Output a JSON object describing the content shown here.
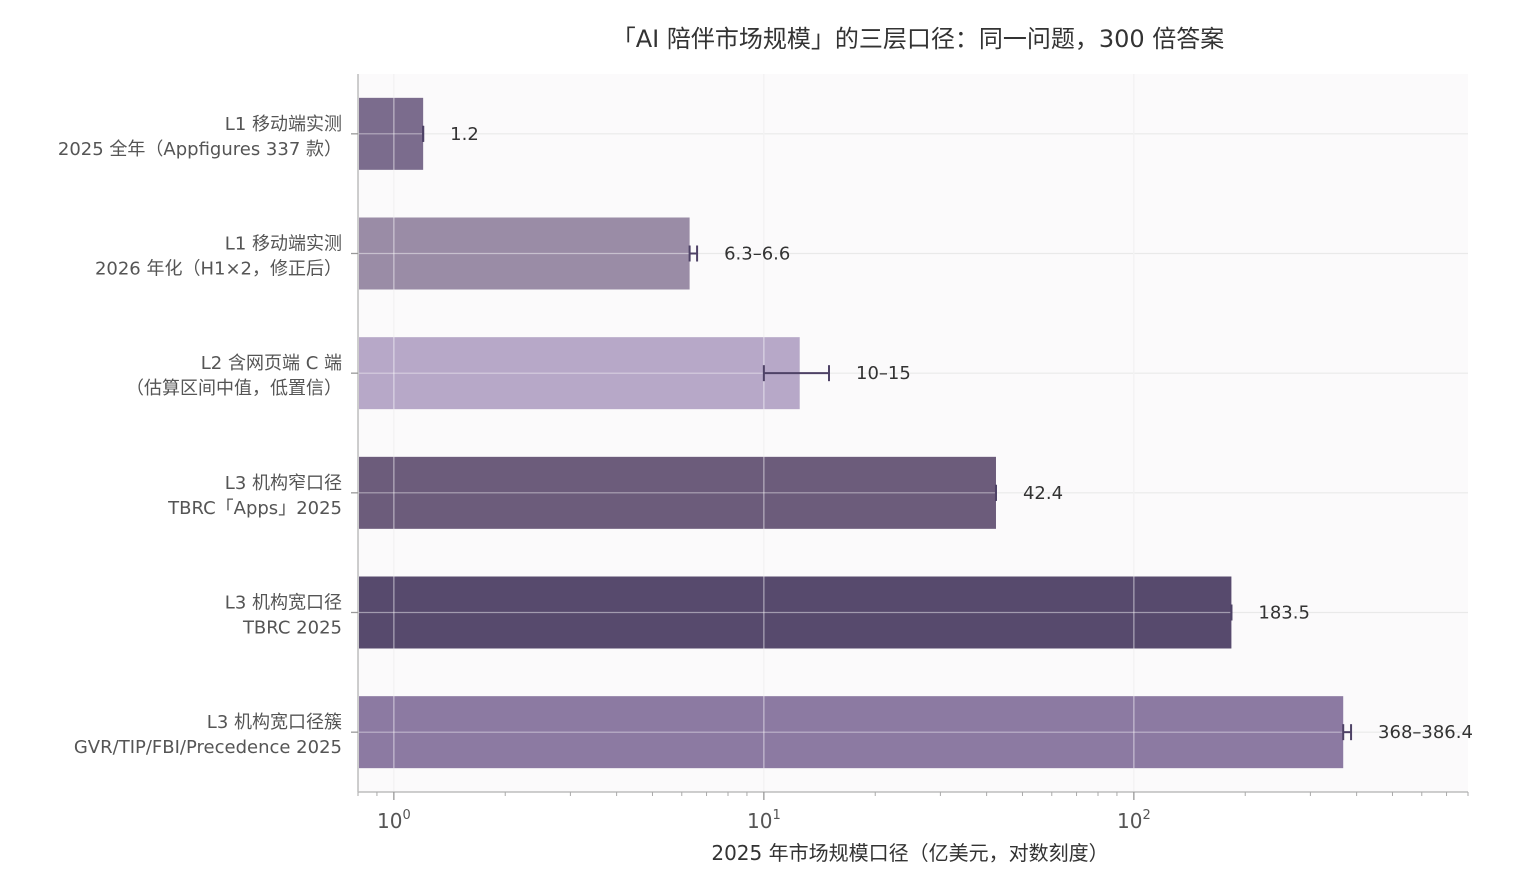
{
  "chart_data": {
    "type": "bar",
    "orientation": "horizontal",
    "title": "「AI 陪伴市场规模」的三层口径：同一问题，300 倍答案",
    "xlabel": "2025 年市场规模口径（亿美元，对数刻度）",
    "xscale": "log",
    "xlim": [
      0.8,
      800
    ],
    "grid": true,
    "legend": "none",
    "x_ticks": [
      {
        "base": "10",
        "exp": "0"
      },
      {
        "base": "10",
        "exp": "1"
      },
      {
        "base": "10",
        "exp": "2"
      }
    ],
    "categories": [
      {
        "line1": "L1 移动端实测",
        "line2": "2025 全年（Appfigures 337 款）"
      },
      {
        "line1": "L1 移动端实测",
        "line2": "2026 年化（H1×2，修正后）"
      },
      {
        "line1": "L2 含网页端 C 端",
        "line2": "（估算区间中值，低置信）"
      },
      {
        "line1": "L3 机构窄口径",
        "line2": "TBRC「Apps」2025"
      },
      {
        "line1": "L3 机构宽口径",
        "line2": "TBRC 2025"
      },
      {
        "line1": "L3 机构宽口径簇",
        "line2": "GVR/TIP/FBI/Precedence 2025"
      }
    ],
    "values": [
      1.2,
      6.3,
      12.5,
      42.4,
      183.5,
      368
    ],
    "ranges": [
      [
        1.2,
        1.2
      ],
      [
        6.3,
        6.6
      ],
      [
        10,
        15
      ],
      [
        42.4,
        42.4
      ],
      [
        183.5,
        183.5
      ],
      [
        368,
        386.4
      ]
    ],
    "value_labels": [
      "1.2",
      "6.3–6.6",
      "10–15",
      "42.4",
      "183.5",
      "368–386.4"
    ],
    "colors": [
      "#7b6c8d",
      "#9a8ca6",
      "#b7a8c8",
      "#6c5c7b",
      "#574a6d",
      "#8c7aa2"
    ],
    "errorbar_color": "#4e4266"
  }
}
